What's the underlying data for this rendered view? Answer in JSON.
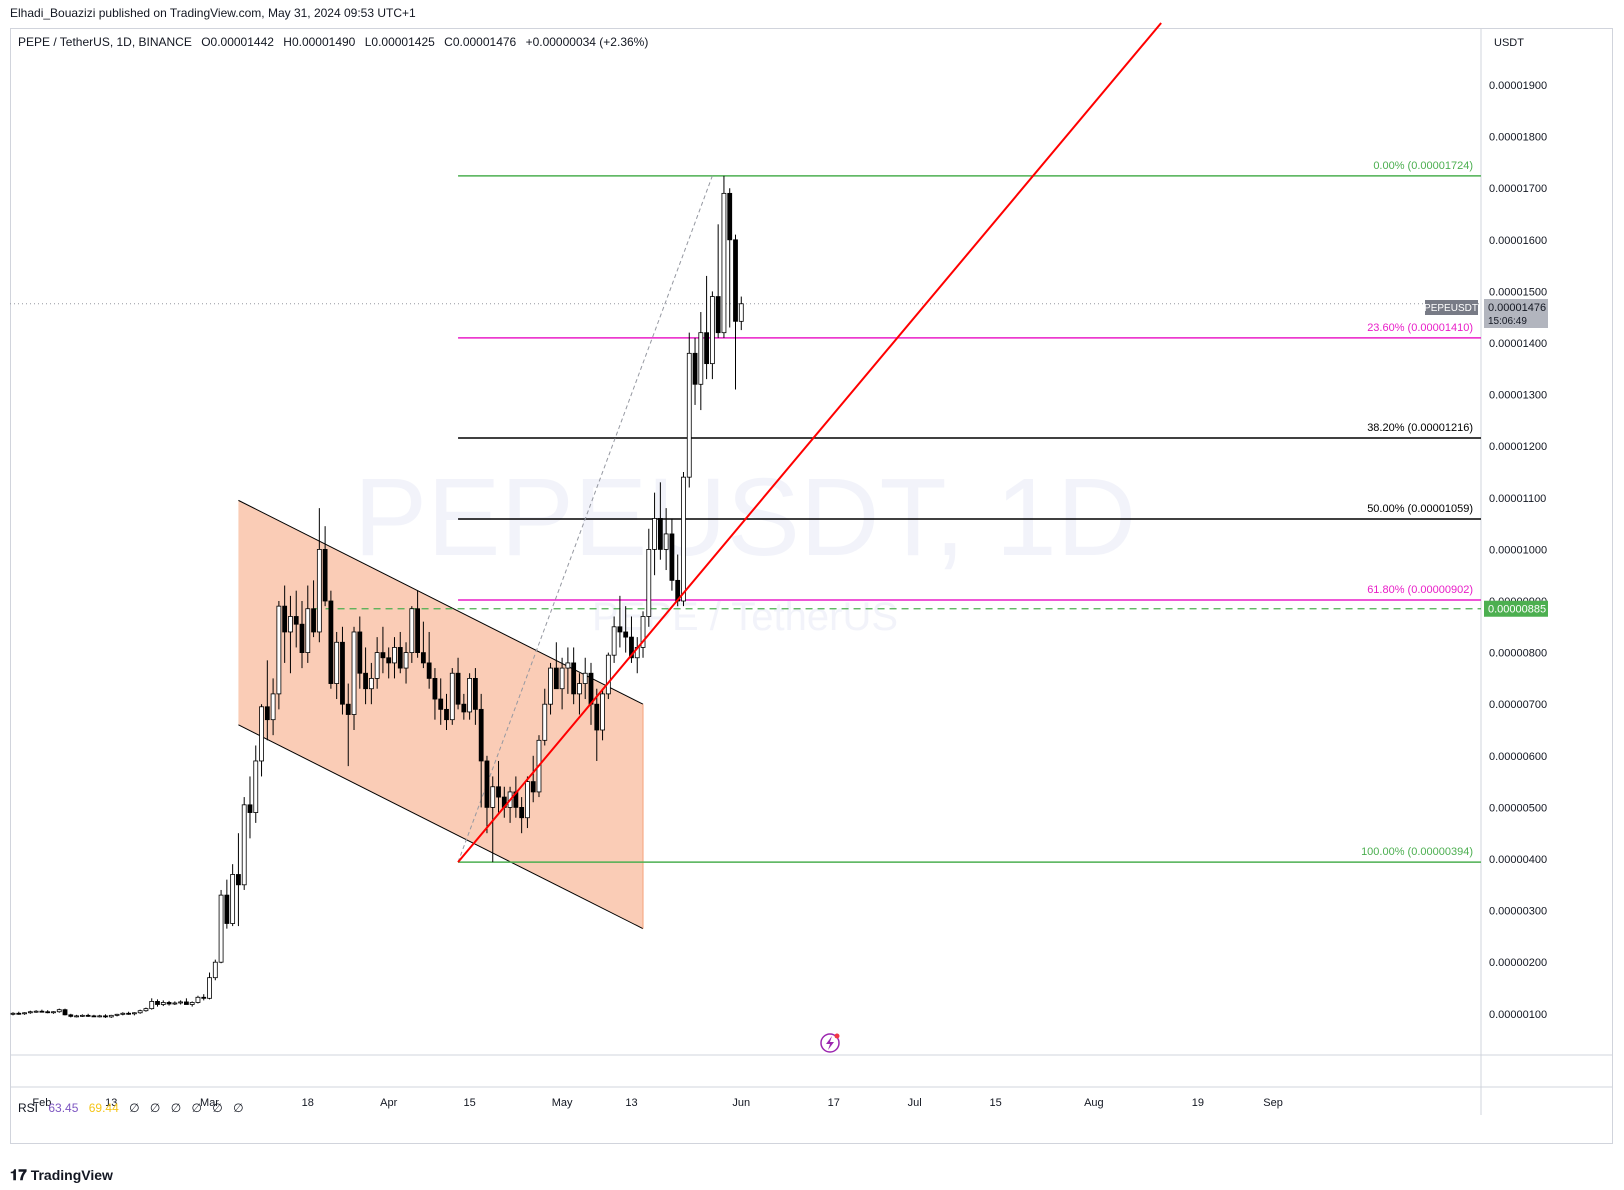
{
  "publisher": "Elhadi_Bouazizi published on TradingView.com, May 31, 2024 09:53 UTC+1",
  "header": {
    "symbol": "PEPE / TetherUS, 1D, BINANCE",
    "open_label": "O",
    "open": "0.00001442",
    "high_label": "H",
    "high": "0.00001490",
    "low_label": "L",
    "low": "0.00001425",
    "close_label": "C",
    "close": "0.00001476",
    "change": "+0.00000034 (+2.36%)"
  },
  "currency": "USDT",
  "watermark": {
    "line1": "PEPEUSDT, 1D",
    "line2": "PEPE / TetherUS"
  },
  "price_badge": {
    "ticker": "PEPEUSDT",
    "price": "0.00001476",
    "countdown": "15:06:49"
  },
  "level_badge": "0.00000885",
  "rsi": {
    "label": "RSI",
    "value1": "63.45",
    "value2": "69.44",
    "empty_marks": [
      "∅",
      "∅",
      "∅",
      "∅",
      "∅",
      "∅"
    ]
  },
  "brand": "TradingView",
  "colors": {
    "up": "#ffffff",
    "down": "#000000",
    "wick": "#000000",
    "fib_green": "#4caf50",
    "fib_magenta": "#e91ec8",
    "fib_black": "#000000",
    "trend_red": "#ff0000",
    "channel_fill": "#f6a27a",
    "dashed_green": "#4caf50"
  },
  "chart_data": {
    "type": "candlestick",
    "y_axis_ticks": [
      "0.00001900",
      "0.00001800",
      "0.00001700",
      "0.00001600",
      "0.00001500",
      "0.00001400",
      "0.00001300",
      "0.00001200",
      "0.00001100",
      "0.00001000",
      "0.00000900",
      "0.00000800",
      "0.00000700",
      "0.00000600",
      "0.00000500",
      "0.00000400",
      "0.00000300",
      "0.00000200",
      "0.00000100"
    ],
    "y_axis_values": [
      19,
      18,
      17,
      16,
      15,
      14,
      13,
      12,
      11,
      10,
      9,
      8,
      7,
      6,
      5,
      4,
      3,
      2,
      1
    ],
    "y_unit_note": "values in units of 1e-6 USDT",
    "x_axis_ticks": [
      "Feb",
      "13",
      "Mar",
      "18",
      "Apr",
      "15",
      "May",
      "13",
      "Jun",
      "17",
      "Jul",
      "15",
      "Aug",
      "19",
      "Sep"
    ],
    "x_axis_tick_dates": [
      "2024-02-01",
      "2024-02-13",
      "2024-03-01",
      "2024-03-18",
      "2024-04-01",
      "2024-04-15",
      "2024-05-01",
      "2024-05-13",
      "2024-06-01",
      "2024-06-17",
      "2024-07-01",
      "2024-07-15",
      "2024-08-01",
      "2024-08-19",
      "2024-09-01"
    ],
    "x_range": [
      "2024-01-27",
      "2024-09-10"
    ],
    "y_range": [
      0,
      20.3
    ],
    "fib_levels": [
      {
        "label": "0.00% (0.00001724)",
        "value": 17.24,
        "color": "#4caf50"
      },
      {
        "label": "23.60% (0.00001410)",
        "value": 14.1,
        "color": "#e91ec8"
      },
      {
        "label": "38.20% (0.00001216)",
        "value": 12.16,
        "color": "#000000"
      },
      {
        "label": "50.00% (0.00001059)",
        "value": 10.59,
        "color": "#000000"
      },
      {
        "label": "61.80% (0.00000902)",
        "value": 9.02,
        "color": "#e91ec8"
      },
      {
        "label": "100.00% (0.00000394)",
        "value": 3.94,
        "color": "#4caf50"
      }
    ],
    "fib_start_date": "2024-04-13",
    "horizontal_dashed": {
      "value": 8.85,
      "start": "2024-03-19"
    },
    "trend_line": {
      "start": [
        "2024-04-13",
        3.94
      ],
      "end": [
        "2024-05-21",
        9.02
      ]
    },
    "diagonal_dashed": {
      "start": [
        "2024-04-13",
        3.94
      ],
      "end": [
        "2024-05-27",
        17.24
      ]
    },
    "channel": {
      "upper": [
        [
          "2024-03-06",
          10.95
        ],
        [
          "2024-05-15",
          7.0
        ]
      ],
      "lower": [
        [
          "2024-03-06",
          6.6
        ],
        [
          "2024-05-15",
          2.65
        ]
      ]
    },
    "candles": [
      [
        "2024-01-27",
        1.0,
        1.03,
        0.97,
        1.01
      ],
      [
        "2024-01-28",
        1.01,
        1.04,
        0.98,
        1.0
      ],
      [
        "2024-01-29",
        1.0,
        1.03,
        0.98,
        1.02
      ],
      [
        "2024-01-30",
        1.02,
        1.06,
        1.0,
        1.04
      ],
      [
        "2024-01-31",
        1.04,
        1.07,
        1.02,
        1.05
      ],
      [
        "2024-02-01",
        1.05,
        1.08,
        1.03,
        1.04
      ],
      [
        "2024-02-02",
        1.04,
        1.07,
        1.01,
        1.03
      ],
      [
        "2024-02-03",
        1.03,
        1.05,
        1.0,
        1.04
      ],
      [
        "2024-02-04",
        1.04,
        1.1,
        1.02,
        1.08
      ],
      [
        "2024-02-05",
        1.08,
        1.1,
        0.97,
        0.98
      ],
      [
        "2024-02-06",
        0.98,
        1.0,
        0.93,
        0.95
      ],
      [
        "2024-02-07",
        0.95,
        0.98,
        0.93,
        0.96
      ],
      [
        "2024-02-08",
        0.96,
        0.99,
        0.94,
        0.97
      ],
      [
        "2024-02-09",
        0.97,
        1.0,
        0.94,
        0.96
      ],
      [
        "2024-02-10",
        0.96,
        0.98,
        0.94,
        0.95
      ],
      [
        "2024-02-11",
        0.95,
        0.98,
        0.93,
        0.96
      ],
      [
        "2024-02-12",
        0.96,
        0.99,
        0.92,
        0.94
      ],
      [
        "2024-02-13",
        0.94,
        0.98,
        0.92,
        0.97
      ],
      [
        "2024-02-14",
        0.97,
        1.0,
        0.95,
        0.99
      ],
      [
        "2024-02-15",
        0.99,
        1.03,
        0.97,
        1.01
      ],
      [
        "2024-02-16",
        1.01,
        1.04,
        0.98,
        1.0
      ],
      [
        "2024-02-17",
        1.0,
        1.03,
        0.97,
        1.02
      ],
      [
        "2024-02-18",
        1.02,
        1.08,
        1.0,
        1.06
      ],
      [
        "2024-02-19",
        1.06,
        1.12,
        1.04,
        1.1
      ],
      [
        "2024-02-20",
        1.1,
        1.3,
        1.08,
        1.24
      ],
      [
        "2024-02-21",
        1.24,
        1.28,
        1.14,
        1.18
      ],
      [
        "2024-02-22",
        1.18,
        1.26,
        1.15,
        1.22
      ],
      [
        "2024-02-23",
        1.22,
        1.25,
        1.16,
        1.19
      ],
      [
        "2024-02-24",
        1.19,
        1.24,
        1.17,
        1.21
      ],
      [
        "2024-02-25",
        1.21,
        1.26,
        1.18,
        1.23
      ],
      [
        "2024-02-26",
        1.23,
        1.3,
        1.2,
        1.18
      ],
      [
        "2024-02-27",
        1.18,
        1.24,
        1.14,
        1.22
      ],
      [
        "2024-02-28",
        1.22,
        1.35,
        1.2,
        1.32
      ],
      [
        "2024-02-29",
        1.32,
        1.38,
        1.26,
        1.3
      ],
      [
        "2024-03-01",
        1.3,
        1.8,
        1.28,
        1.7
      ],
      [
        "2024-03-02",
        1.7,
        2.05,
        1.65,
        2.0
      ],
      [
        "2024-03-03",
        2.0,
        3.4,
        1.98,
        3.3
      ],
      [
        "2024-03-04",
        3.3,
        3.6,
        2.65,
        2.75
      ],
      [
        "2024-03-05",
        2.75,
        3.9,
        2.7,
        3.7
      ],
      [
        "2024-03-06",
        3.7,
        4.5,
        2.7,
        3.5
      ],
      [
        "2024-03-07",
        3.5,
        5.2,
        3.4,
        5.05
      ],
      [
        "2024-03-08",
        5.05,
        5.6,
        4.4,
        4.9
      ],
      [
        "2024-03-09",
        4.9,
        6.2,
        4.7,
        5.9
      ],
      [
        "2024-03-10",
        5.9,
        7.0,
        5.6,
        6.95
      ],
      [
        "2024-03-11",
        6.95,
        7.85,
        6.3,
        6.7
      ],
      [
        "2024-03-12",
        6.7,
        7.5,
        6.4,
        7.2
      ],
      [
        "2024-03-13",
        7.2,
        9.0,
        6.9,
        8.9
      ],
      [
        "2024-03-14",
        8.9,
        9.3,
        7.8,
        8.4
      ],
      [
        "2024-03-15",
        8.4,
        9.1,
        7.6,
        8.7
      ],
      [
        "2024-03-16",
        8.7,
        9.2,
        8.1,
        8.55
      ],
      [
        "2024-03-17",
        8.55,
        9.0,
        7.7,
        8.0
      ],
      [
        "2024-03-18",
        8.0,
        9.3,
        7.8,
        8.85
      ],
      [
        "2024-03-19",
        8.85,
        9.4,
        8.3,
        8.4
      ],
      [
        "2024-03-20",
        8.4,
        10.8,
        8.2,
        10.0
      ],
      [
        "2024-03-21",
        10.0,
        10.45,
        8.9,
        9.0
      ],
      [
        "2024-03-22",
        9.0,
        9.2,
        7.3,
        7.4
      ],
      [
        "2024-03-23",
        7.4,
        8.4,
        7.1,
        8.2
      ],
      [
        "2024-03-24",
        8.2,
        8.5,
        6.8,
        7.0
      ],
      [
        "2024-03-25",
        7.0,
        7.4,
        5.8,
        6.8
      ],
      [
        "2024-03-26",
        6.8,
        8.5,
        6.5,
        8.4
      ],
      [
        "2024-03-27",
        8.4,
        8.7,
        7.3,
        7.6
      ],
      [
        "2024-03-28",
        7.6,
        8.1,
        7.0,
        7.3
      ],
      [
        "2024-03-29",
        7.3,
        7.8,
        7.0,
        7.5
      ],
      [
        "2024-03-30",
        7.5,
        8.3,
        7.3,
        8.0
      ],
      [
        "2024-03-31",
        8.0,
        8.5,
        7.6,
        7.9
      ],
      [
        "2024-04-01",
        7.9,
        8.1,
        7.5,
        7.8
      ],
      [
        "2024-04-02",
        7.8,
        8.3,
        7.5,
        8.1
      ],
      [
        "2024-04-03",
        8.1,
        8.4,
        7.6,
        7.7
      ],
      [
        "2024-04-04",
        7.7,
        8.2,
        7.4,
        8.0
      ],
      [
        "2024-04-05",
        8.0,
        8.9,
        7.8,
        8.85
      ],
      [
        "2024-04-06",
        8.85,
        9.2,
        7.9,
        8.0
      ],
      [
        "2024-04-07",
        8.0,
        8.6,
        7.7,
        7.8
      ],
      [
        "2024-04-08",
        7.8,
        8.4,
        7.3,
        7.5
      ],
      [
        "2024-04-09",
        7.5,
        7.7,
        6.7,
        7.1
      ],
      [
        "2024-04-10",
        7.1,
        7.5,
        6.6,
        6.9
      ],
      [
        "2024-04-11",
        6.9,
        7.2,
        6.5,
        6.7
      ],
      [
        "2024-04-12",
        6.7,
        7.7,
        6.6,
        7.6
      ],
      [
        "2024-04-13",
        7.6,
        7.9,
        6.9,
        7.0
      ],
      [
        "2024-04-14",
        7.0,
        7.2,
        6.7,
        6.85
      ],
      [
        "2024-04-15",
        6.85,
        7.6,
        6.7,
        7.5
      ],
      [
        "2024-04-16",
        7.5,
        7.7,
        6.6,
        6.9
      ],
      [
        "2024-04-17",
        6.9,
        7.2,
        5.0,
        5.9
      ],
      [
        "2024-04-18",
        5.9,
        6.0,
        4.5,
        5.0
      ],
      [
        "2024-04-19",
        5.0,
        5.6,
        3.94,
        5.4
      ],
      [
        "2024-04-20",
        5.4,
        5.9,
        4.9,
        5.2
      ],
      [
        "2024-04-21",
        5.2,
        5.4,
        4.8,
        5.0
      ],
      [
        "2024-04-22",
        5.0,
        5.4,
        4.7,
        5.3
      ],
      [
        "2024-04-23",
        5.3,
        5.6,
        4.8,
        5.0
      ],
      [
        "2024-04-24",
        5.0,
        5.2,
        4.5,
        4.8
      ],
      [
        "2024-04-25",
        4.8,
        5.6,
        4.6,
        5.5
      ],
      [
        "2024-04-26",
        5.5,
        6.0,
        5.1,
        5.3
      ],
      [
        "2024-04-27",
        5.3,
        6.4,
        5.2,
        6.3
      ],
      [
        "2024-04-28",
        6.3,
        7.3,
        6.2,
        7.0
      ],
      [
        "2024-04-29",
        7.0,
        7.8,
        6.8,
        7.7
      ],
      [
        "2024-04-30",
        7.7,
        8.2,
        7.3,
        7.3
      ],
      [
        "2024-05-01",
        7.3,
        7.9,
        6.9,
        7.7
      ],
      [
        "2024-05-02",
        7.7,
        8.1,
        7.2,
        7.8
      ],
      [
        "2024-05-03",
        7.8,
        8.1,
        7.0,
        7.2
      ],
      [
        "2024-05-04",
        7.2,
        7.6,
        6.8,
        7.4
      ],
      [
        "2024-05-05",
        7.4,
        7.9,
        7.1,
        7.6
      ],
      [
        "2024-05-06",
        7.6,
        7.8,
        6.6,
        7.0
      ],
      [
        "2024-05-07",
        7.0,
        7.3,
        5.9,
        6.5
      ],
      [
        "2024-05-08",
        6.5,
        7.3,
        6.3,
        7.2
      ],
      [
        "2024-05-09",
        7.2,
        8.0,
        7.1,
        7.95
      ],
      [
        "2024-05-10",
        7.95,
        8.7,
        7.8,
        8.5
      ],
      [
        "2024-05-11",
        8.5,
        9.1,
        8.1,
        8.4
      ],
      [
        "2024-05-12",
        8.4,
        8.9,
        8.0,
        8.3
      ],
      [
        "2024-05-13",
        8.3,
        8.7,
        7.8,
        7.9
      ],
      [
        "2024-05-14",
        7.9,
        8.3,
        7.6,
        8.1
      ],
      [
        "2024-05-15",
        8.1,
        8.8,
        7.9,
        8.7
      ],
      [
        "2024-05-16",
        8.7,
        10.4,
        8.5,
        10.0
      ],
      [
        "2024-05-17",
        10.0,
        11.1,
        9.5,
        10.6
      ],
      [
        "2024-05-18",
        10.6,
        11.3,
        9.8,
        10.0
      ],
      [
        "2024-05-19",
        10.0,
        10.8,
        9.6,
        10.3
      ],
      [
        "2024-05-20",
        10.3,
        10.6,
        9.2,
        9.4
      ],
      [
        "2024-05-21",
        9.4,
        9.9,
        8.9,
        9.0
      ],
      [
        "2024-05-22",
        9.0,
        11.5,
        8.9,
        11.4
      ],
      [
        "2024-05-23",
        11.4,
        14.2,
        11.2,
        13.8
      ],
      [
        "2024-05-24",
        13.8,
        14.1,
        12.8,
        13.2
      ],
      [
        "2024-05-25",
        13.2,
        14.6,
        12.7,
        14.2
      ],
      [
        "2024-05-26",
        14.2,
        15.3,
        13.3,
        13.6
      ],
      [
        "2024-05-27",
        13.6,
        15.0,
        13.3,
        14.9
      ],
      [
        "2024-05-28",
        14.9,
        16.3,
        14.1,
        14.2
      ],
      [
        "2024-05-29",
        14.2,
        17.24,
        14.1,
        16.9
      ],
      [
        "2024-05-30",
        16.9,
        17.0,
        14.3,
        16.0
      ],
      [
        "2024-05-31",
        16.0,
        16.1,
        13.1,
        14.42
      ],
      [
        "2024-06-01",
        14.42,
        14.9,
        14.25,
        14.76
      ]
    ]
  }
}
